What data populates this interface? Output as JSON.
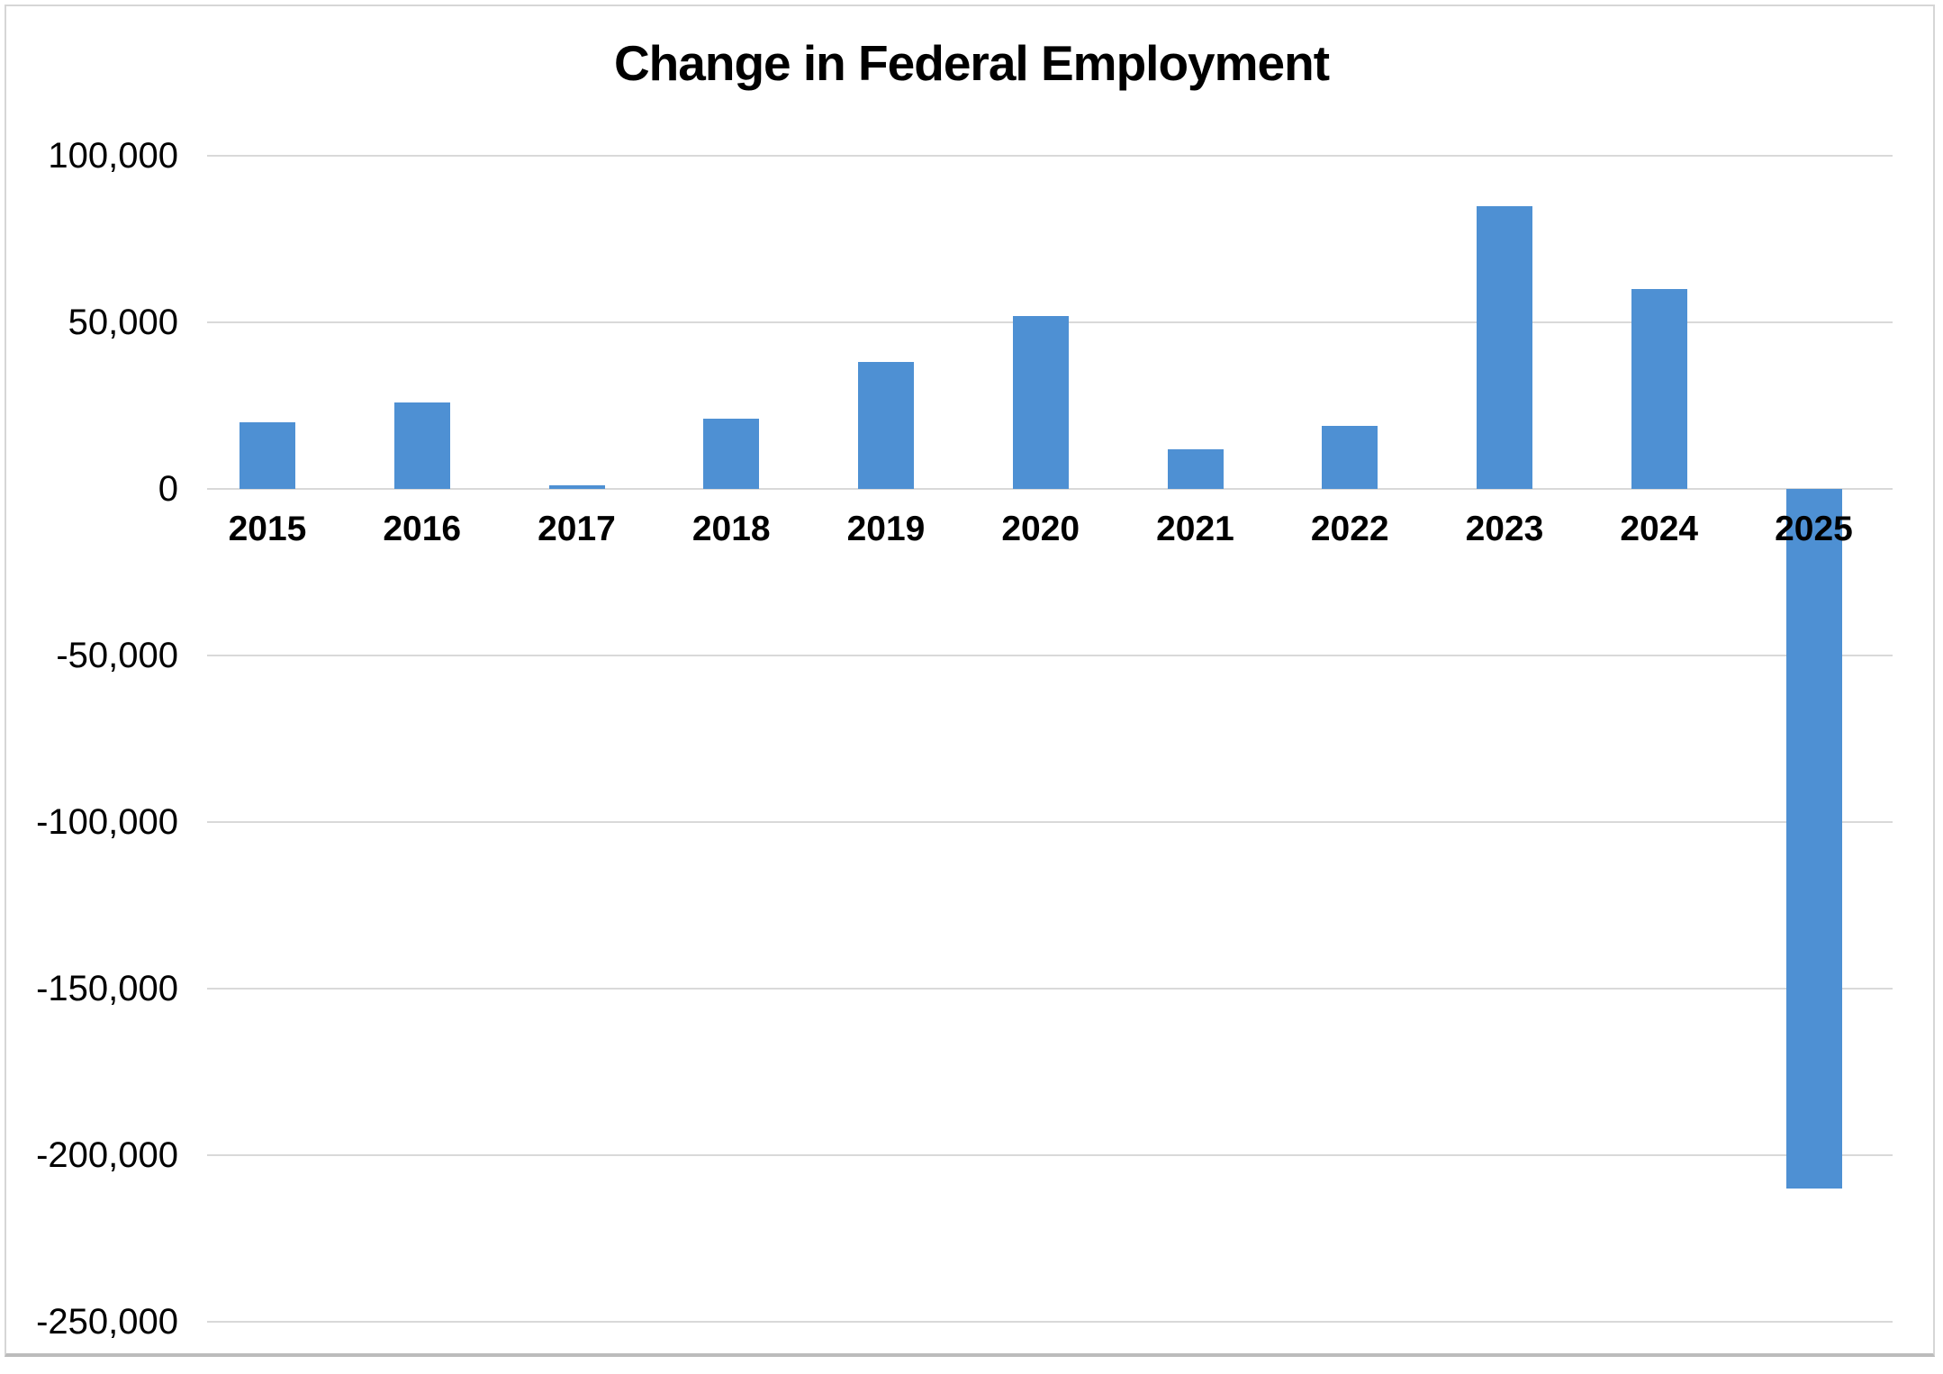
{
  "chart_data": {
    "type": "bar",
    "title": "Change in Federal Employment",
    "categories": [
      "2015",
      "2016",
      "2017",
      "2018",
      "2019",
      "2020",
      "2021",
      "2022",
      "2023",
      "2024",
      "2025"
    ],
    "values": [
      20000,
      26000,
      1000,
      21000,
      38000,
      52000,
      12000,
      19000,
      85000,
      60000,
      -210000
    ],
    "xlabel": "",
    "ylabel": "",
    "ylim": [
      -250000,
      100000
    ],
    "y_tick_interval": 50000,
    "y_ticks": [
      {
        "value": 100000,
        "label": "100,000"
      },
      {
        "value": 50000,
        "label": "50,000"
      },
      {
        "value": 0,
        "label": "0"
      },
      {
        "value": -50000,
        "label": "-50,000"
      },
      {
        "value": -100000,
        "label": "-100,000"
      },
      {
        "value": -150000,
        "label": "-150,000"
      },
      {
        "value": -200000,
        "label": "-200,000"
      },
      {
        "value": -250000,
        "label": "-250,000"
      }
    ],
    "grid": "horizontal",
    "legend": "none",
    "x_label_position": "next-to-zero-axis",
    "colors": {
      "bar_fill": "#4E90D3",
      "gridline": "#D9D9D9",
      "text": "#000000",
      "background": "#FFFFFF",
      "frame_border": "#D6D6D6"
    }
  }
}
